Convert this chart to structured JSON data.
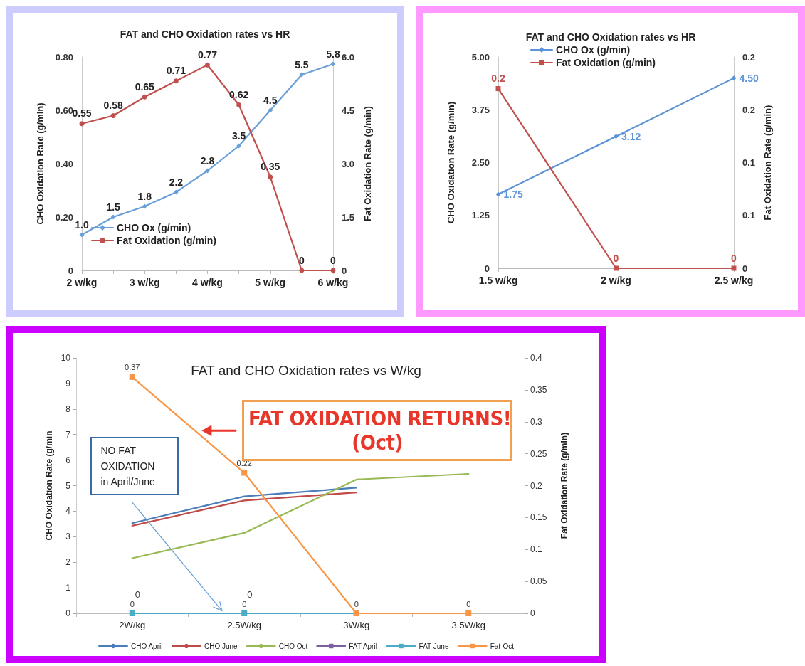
{
  "chart_data": [
    {
      "type": "line",
      "title": "FAT and CHO Oxidation rates vs HR",
      "ylabel": "CHO Oxidation Rate (g/min)",
      "y2label": "Fat Oxidation Rate (g/min)",
      "categories": [
        "2 w/kg",
        null,
        "3 w/kg",
        null,
        "4 w/kg",
        null,
        "5 w/kg",
        null,
        "6 w/kg"
      ],
      "series": [
        {
          "name": "CHO Ox (g/min)",
          "color": "#6a9fd8",
          "axis": "y2",
          "marker": "diamond",
          "values": [
            1.0,
            1.5,
            1.8,
            2.2,
            2.8,
            3.5,
            4.5,
            5.5,
            5.8
          ],
          "value_labels": [
            "1.0",
            "1.5",
            "1.8",
            "2.2",
            "2.8",
            "3.5",
            "4.5",
            "5.5",
            "5.8"
          ]
        },
        {
          "name": "Fat Oxidation (g/min)",
          "color": "#c0504d",
          "axis": "y",
          "marker": "circle",
          "values": [
            0.55,
            0.58,
            0.65,
            0.71,
            0.77,
            0.62,
            0.35,
            0,
            0
          ],
          "value_labels": [
            "0.55",
            "0.58",
            "0.65",
            "0.71",
            "0.77",
            "0.62",
            "0.35",
            "0",
            "0"
          ]
        }
      ],
      "ylim": [
        0,
        0.8
      ],
      "yticks": [
        0,
        {
          "value": 0.2,
          "label": "0.20"
        },
        {
          "value": 0.4,
          "label": "0.40"
        },
        {
          "value": 0.6,
          "label": "0.60"
        },
        {
          "value": 0.8,
          "label": "0.80"
        }
      ],
      "y2lim": [
        0,
        6
      ],
      "y2ticks": [
        0,
        1.5,
        {
          "value": 3,
          "label": "3.0"
        },
        4.5,
        {
          "value": 6,
          "label": "6.0"
        }
      ],
      "grid": false,
      "legend": "bottom left",
      "line_style": "solid"
    },
    {
      "type": "line",
      "title": "FAT and CHO Oxidation rates vs HR",
      "ylabel": "CHO Oxidation Rate (g/min)",
      "y2label": "Fat Oxidation Rate (g/min)",
      "categories": [
        "1.5 w/kg",
        "2 w/kg",
        "2.5 w/kg"
      ],
      "series": [
        {
          "name": "CHO Ox (g/min)",
          "color": "#5b93d6",
          "axis": "y",
          "marker": "diamond",
          "values": [
            1.75,
            3.12,
            4.5
          ],
          "value_labels": [
            "1.75",
            "3.12",
            "4.50"
          ]
        },
        {
          "name": "Fat Oxidation (g/min)",
          "color": "#c0504d",
          "axis": "y2",
          "marker": "square",
          "values": [
            0.17,
            0,
            0
          ],
          "value_labels": [
            "0.2",
            "0",
            "0"
          ]
        }
      ],
      "ylim": [
        0,
        5
      ],
      "yticks": [
        0,
        1.25,
        {
          "value": 2.5,
          "label": "2.50"
        },
        3.75,
        {
          "value": 5,
          "label": "5.00"
        }
      ],
      "y2lim": [
        0,
        0.2
      ],
      "y2ticks": [
        0,
        {
          "value": 0.05,
          "label": "0.1"
        },
        0.1,
        {
          "value": 0.15,
          "label": "0.2"
        },
        0.2
      ],
      "grid": false,
      "legend": "top",
      "line_style": "solid"
    },
    {
      "type": "line",
      "title": "FAT and CHO Oxidation rates vs W/kg",
      "ylabel": "CHO Oxidation Rate (g/min",
      "y2label": "Fat Oxidation Rate (g/min)",
      "categories": [
        "2W/kg",
        "2.5W/kg",
        "3W/kg",
        "3.5W/kg"
      ],
      "series": [
        {
          "name": "CHO April",
          "color": "#4a7ebb",
          "axis": "y",
          "marker": "none",
          "values": [
            3.53,
            4.58,
            4.92,
            null
          ]
        },
        {
          "name": "CHO June",
          "color": "#be4b48",
          "axis": "y",
          "marker": "none",
          "values": [
            3.43,
            4.42,
            4.73,
            null
          ]
        },
        {
          "name": "CHO Oct",
          "color": "#98b954",
          "axis": "y",
          "marker": "none",
          "values": [
            2.16,
            3.15,
            5.24,
            5.46
          ]
        },
        {
          "name": "FAT April",
          "color": "#7d60a0",
          "axis": "y2",
          "marker": "square",
          "values": [
            null,
            null,
            null,
            null
          ]
        },
        {
          "name": "FAT June",
          "color": "#4bacc6",
          "axis": "y2",
          "marker": "square",
          "values": [
            0,
            0,
            0,
            null
          ],
          "value_labels": [
            "0",
            "0",
            null,
            null
          ]
        },
        {
          "name": "Fat-Oct",
          "color": "#f79646",
          "axis": "y2",
          "marker": "square",
          "values": [
            0.37,
            0.22,
            0,
            0
          ],
          "value_labels": [
            "0.37",
            "0.22",
            "0",
            "0"
          ]
        }
      ],
      "ylim": [
        0,
        10
      ],
      "yticks": [
        0,
        1,
        2,
        3,
        4,
        5,
        6,
        7,
        8,
        9,
        10
      ],
      "y2lim": [
        0,
        0.4
      ],
      "y2ticks": [
        0,
        0.05,
        0.1,
        0.15,
        0.2,
        0.25,
        0.3,
        0.35,
        0.4
      ],
      "annotations": [
        "FAT OXIDATION RETURNS!\n(Oct)",
        "NO FAT\nOXIDATION\nin April/June",
        {
          "text": "0",
          "x": "2W/kg",
          "y": 0
        },
        {
          "text": "0",
          "x": "2.5W/kg",
          "y": 0
        }
      ],
      "grid": false,
      "legend": "bottom",
      "line_style": "solid"
    }
  ]
}
